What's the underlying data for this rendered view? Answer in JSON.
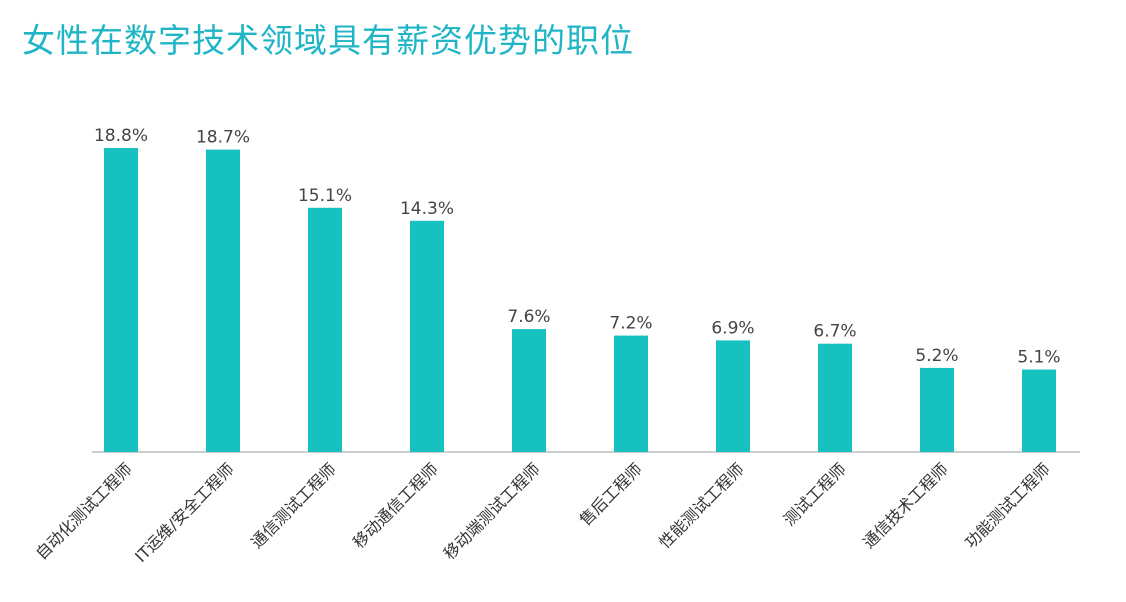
{
  "chart_data": {
    "type": "bar",
    "title": "女性在数字技术领域具有薪资优势的职位",
    "xlabel": "",
    "ylabel": "",
    "categories": [
      "自动化测试工程师",
      "IT运维/安全工程师",
      "通信测试工程师",
      "移动通信工程师",
      "移动端测试工程师",
      "售后工程师",
      "性能测试工程师",
      "测试工程师",
      "通信技术工程师",
      "功能测试工程师"
    ],
    "values": [
      18.8,
      18.7,
      15.1,
      14.3,
      7.6,
      7.2,
      6.9,
      6.7,
      5.2,
      5.1
    ],
    "value_labels": [
      "18.8%",
      "18.7%",
      "15.1%",
      "14.3%",
      "7.6%",
      "7.2%",
      "6.9%",
      "6.7%",
      "5.2%",
      "5.1%"
    ],
    "ylim": [
      0,
      18.8
    ],
    "grid": false,
    "legend": "none",
    "bar_color": "#17c1c0",
    "title_color": "#1fb5c7"
  }
}
